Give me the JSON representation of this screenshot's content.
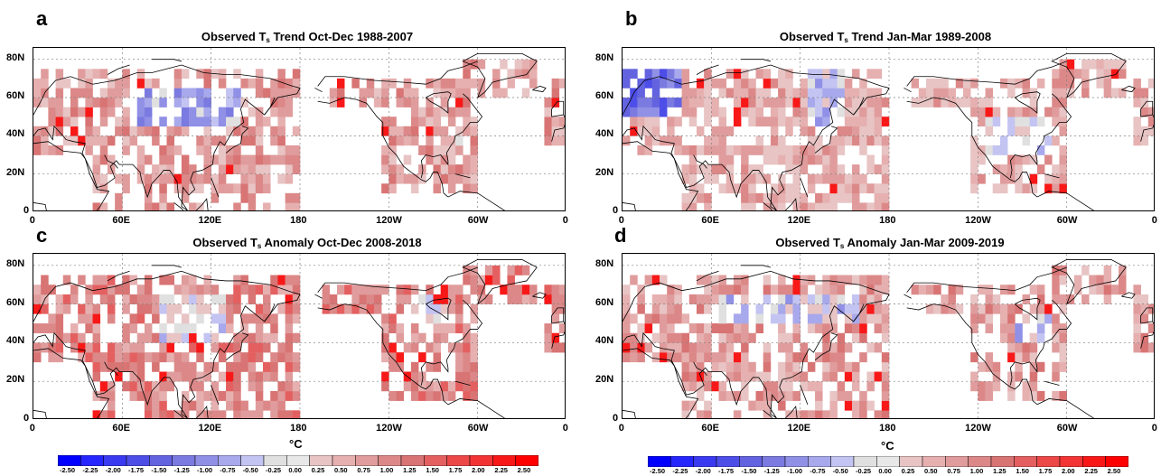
{
  "panels": [
    {
      "letter": "a",
      "title_pre": "Observed T",
      "title_sub": "s",
      "title_post": " Trend Oct-Dec 1988-2007"
    },
    {
      "letter": "b",
      "title_pre": "Observed T",
      "title_sub": "s",
      "title_post": " Trend Jan-Mar 1989-2008"
    },
    {
      "letter": "c",
      "title_pre": "Observed T",
      "title_sub": "s",
      "title_post": " Anomaly Oct-Dec 2008-2018"
    },
    {
      "letter": "d",
      "title_pre": "Observed T",
      "title_sub": "s",
      "title_post": " Anomaly Jan-Mar 2009-2019"
    }
  ],
  "axes": {
    "lat_ticks": [
      "80N",
      "60N",
      "40N",
      "20N",
      "0"
    ],
    "lon_ticks": [
      "0",
      "60E",
      "120E",
      "180",
      "120W",
      "60W",
      "0"
    ]
  },
  "colorbar": {
    "unit": "°C",
    "labels": [
      "-2.50",
      "-2.25",
      "-2.00",
      "-1.75",
      "-1.50",
      "-1.25",
      "-1.00",
      "-0.75",
      "-0.50",
      "-0.25",
      "0.00",
      "0.25",
      "0.50",
      "0.75",
      "1.00",
      "1.25",
      "1.50",
      "1.75",
      "2.00",
      "2.25",
      "2.50"
    ],
    "colors": [
      "#0000ff",
      "#2626ff",
      "#3a3af0",
      "#4d4de8",
      "#6363e0",
      "#7a7ae0",
      "#9090e6",
      "#a8a8ec",
      "#c4c4f2",
      "#e0e0e0",
      "#e8e8e8",
      "#e8c4c4",
      "#e6b0b0",
      "#e09c9c",
      "#dc8888",
      "#d87474",
      "#e46060",
      "#ec4848",
      "#f23434",
      "#f81818",
      "#ff0000"
    ]
  },
  "map_colors": {
    "ocean": "#ffffff",
    "coast": "#000000",
    "grid": "#808080"
  }
}
